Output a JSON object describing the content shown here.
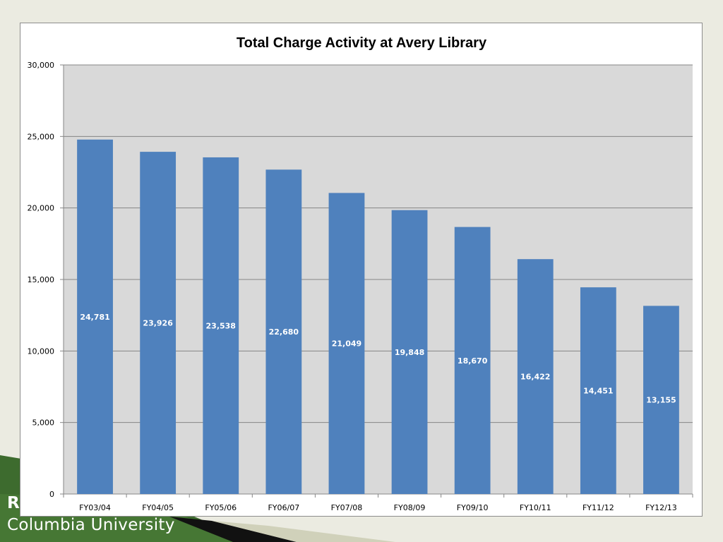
{
  "footer": {
    "line1": "R",
    "line2": "Columbia University"
  },
  "colors": {
    "bar": "#4f81bd",
    "plot_bg": "#d9d9d9",
    "gridline": "#868686",
    "footer_green": "#3d6b2e"
  },
  "chart_data": {
    "type": "bar",
    "title": "Total Charge Activity at Avery Library",
    "xlabel": "",
    "ylabel": "",
    "ylim": [
      0,
      30000
    ],
    "yticks": [
      0,
      5000,
      10000,
      15000,
      20000,
      25000,
      30000
    ],
    "ytick_labels": [
      "0",
      "5,000",
      "10,000",
      "15,000",
      "20,000",
      "25,000",
      "30,000"
    ],
    "grid": true,
    "legend": "none",
    "categories": [
      "FY03/04",
      "FY04/05",
      "FY05/06",
      "FY06/07",
      "FY07/08",
      "FY08/09",
      "FY09/10",
      "FY10/11",
      "FY11/12",
      "FY12/13"
    ],
    "values": [
      24781,
      23926,
      23538,
      22680,
      21049,
      19848,
      18670,
      16422,
      14451,
      13155
    ],
    "data_labels": [
      "24,781",
      "23,926",
      "23,538",
      "22,680",
      "21,049",
      "19,848",
      "18,670",
      "16,422",
      "14,451",
      "13,155"
    ]
  }
}
